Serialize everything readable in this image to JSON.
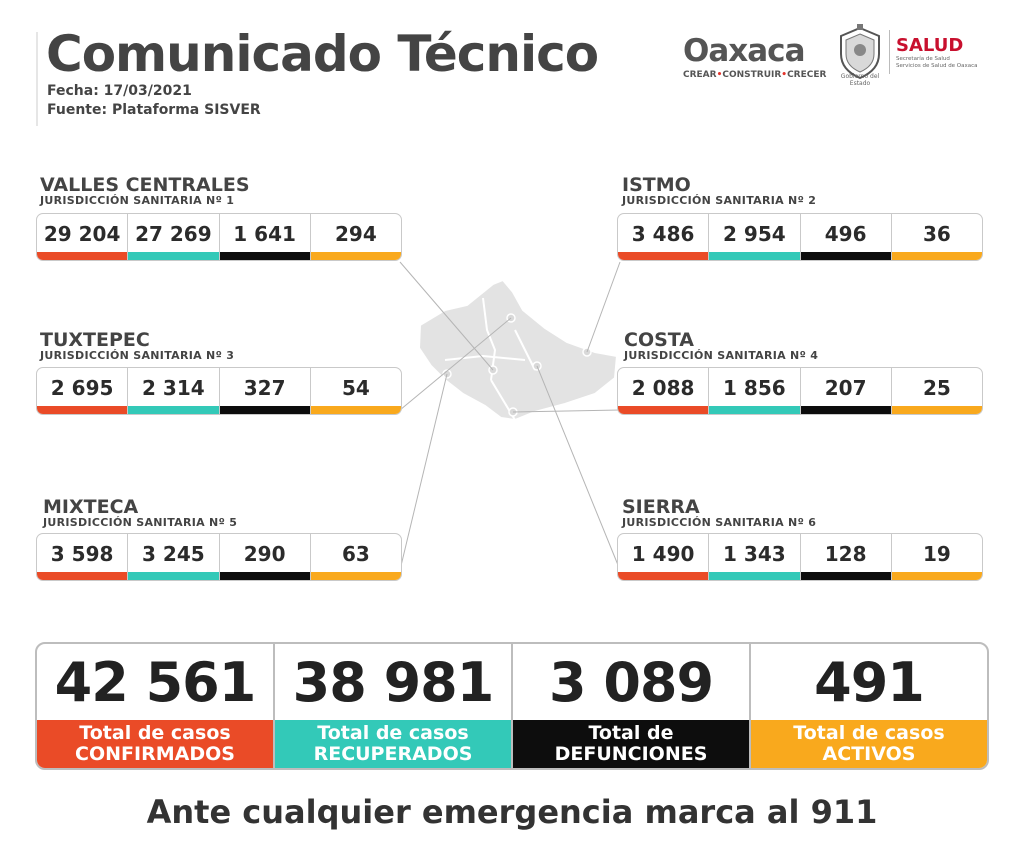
{
  "header": {
    "title": "Comunicado Técnico",
    "fecha": "Fecha: 17/03/2021",
    "fuente": "Fuente: Plataforma SISVER"
  },
  "logos": {
    "oaxaca_word": "Oaxaca",
    "oaxaca_tag": [
      "CREAR",
      "CONSTRUIR",
      "CRECER"
    ],
    "seal_caption": "Gobierno del Estado",
    "salud_title": "SALUD",
    "salud_sub1": "Secretaría de Salud",
    "salud_sub2": "Servicios de Salud de Oaxaca"
  },
  "colors": {
    "confirmados": "#ea4b27",
    "recuperados": "#33c9b8",
    "defunciones": "#0d0d0d",
    "activos": "#f9a91d"
  },
  "regions": [
    {
      "name": "VALLES CENTRALES",
      "sub": "JURISDICCIÓN SANITARIA Nº 1",
      "values": [
        "29 204",
        "27 269",
        "1 641",
        "294"
      ]
    },
    {
      "name": "ISTMO",
      "sub": "JURISDICCIÓN SANITARIA Nº 2",
      "values": [
        "3 486",
        "2 954",
        "496",
        "36"
      ]
    },
    {
      "name": "TUXTEPEC",
      "sub": "JURISDICCIÓN SANITARIA Nº 3",
      "values": [
        "2 695",
        "2 314",
        "327",
        "54"
      ]
    },
    {
      "name": "COSTA",
      "sub": "JURISDICCIÓN SANITARIA Nº 4",
      "values": [
        "2 088",
        "1 856",
        "207",
        "25"
      ]
    },
    {
      "name": "MIXTECA",
      "sub": "JURISDICCIÓN SANITARIA Nº 5",
      "values": [
        "3 598",
        "3 245",
        "290",
        "63"
      ]
    },
    {
      "name": "SIERRA",
      "sub": "JURISDICCIÓN SANITARIA Nº 6",
      "values": [
        "1 490",
        "1 343",
        "128",
        "19"
      ]
    }
  ],
  "totals": [
    {
      "value": "42 561",
      "label1": "Total de casos",
      "label2": "CONFIRMADOS"
    },
    {
      "value": "38 981",
      "label1": "Total de casos",
      "label2": "RECUPERADOS"
    },
    {
      "value": "3 089",
      "label1": "Total de",
      "label2": "DEFUNCIONES"
    },
    {
      "value": "491",
      "label1": "Total de casos",
      "label2": "ACTIVOS"
    }
  ],
  "footer": "Ante cualquier emergencia marca al 911"
}
